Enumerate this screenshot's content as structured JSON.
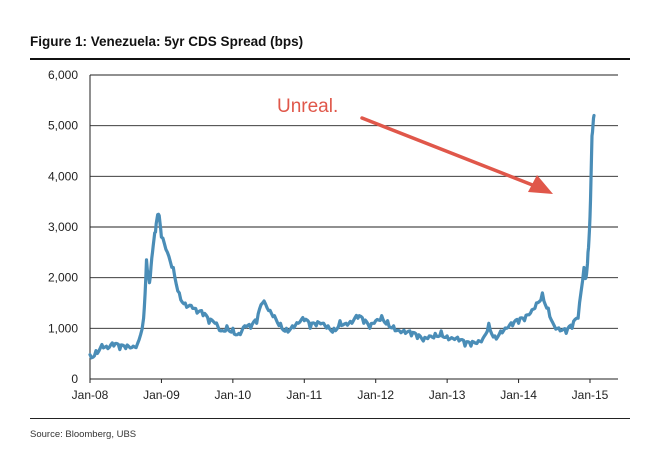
{
  "figure": {
    "title": "Figure 1: Venezuela: 5yr CDS Spread (bps)",
    "source": "Source:  Bloomberg, UBS"
  },
  "chart_data": {
    "type": "line",
    "title": "Figure 1: Venezuela: 5yr CDS Spread (bps)",
    "xlabel": "",
    "ylabel": "",
    "ylim": [
      0,
      6000
    ],
    "yticks": [
      0,
      1000,
      2000,
      3000,
      4000,
      5000,
      6000
    ],
    "ytick_labels": [
      "0",
      "1,000",
      "2,000",
      "3,000",
      "4,000",
      "5,000",
      "6,000"
    ],
    "xlim": [
      "2008-01",
      "2015-01"
    ],
    "xtick_labels": [
      "Jan-08",
      "Jan-09",
      "Jan-10",
      "Jan-11",
      "Jan-12",
      "Jan-13",
      "Jan-14",
      "Jan-15"
    ],
    "grid": "horizontal",
    "line_color": "#4a8db7",
    "annotation": {
      "text": "Unreal.",
      "color": "#e0574a"
    },
    "series": [
      {
        "x": [
          "2008-01",
          "2008-02",
          "2008-03",
          "2008-04",
          "2008-05",
          "2008-06",
          "2008-07",
          "2008-08",
          "2008-09",
          "2008-10",
          "2008-10",
          "2008-11",
          "2008-11",
          "2008-12",
          "2008-12",
          "2009-01",
          "2009-02",
          "2009-03",
          "2009-04",
          "2009-05",
          "2009-06",
          "2009-07",
          "2009-08",
          "2009-09",
          "2009-10",
          "2009-11",
          "2009-12",
          "2010-01",
          "2010-02",
          "2010-03",
          "2010-04",
          "2010-05",
          "2010-06",
          "2010-07",
          "2010-08",
          "2010-09",
          "2010-10",
          "2010-11",
          "2010-12",
          "2011-01",
          "2011-02",
          "2011-03",
          "2011-04",
          "2011-05",
          "2011-06",
          "2011-07",
          "2011-08",
          "2011-09",
          "2011-10",
          "2011-11",
          "2011-12",
          "2012-01",
          "2012-02",
          "2012-03",
          "2012-04",
          "2012-05",
          "2012-06",
          "2012-07",
          "2012-08",
          "2012-09",
          "2012-10",
          "2012-11",
          "2012-12",
          "2013-01",
          "2013-02",
          "2013-03",
          "2013-04",
          "2013-05",
          "2013-06",
          "2013-07",
          "2013-08",
          "2013-09",
          "2013-10",
          "2013-11",
          "2013-12",
          "2014-01",
          "2014-02",
          "2014-03",
          "2014-04",
          "2014-05",
          "2014-06",
          "2014-07",
          "2014-08",
          "2014-09",
          "2014-10",
          "2014-11",
          "2014-12",
          "2014-12",
          "2014-12",
          "2015-01",
          "2015-01",
          "2015-01"
        ],
        "values": [
          480,
          560,
          680,
          600,
          650,
          580,
          600,
          620,
          700,
          1200,
          2350,
          1900,
          2500,
          2900,
          3250,
          2800,
          2500,
          2200,
          1700,
          1500,
          1450,
          1300,
          1250,
          1100,
          1100,
          950,
          1050,
          1000,
          900,
          1050,
          1000,
          1100,
          1500,
          1350,
          1250,
          1100,
          1000,
          1050,
          1100,
          1150,
          1000,
          1050,
          1100,
          1050,
          1000,
          1150,
          1100,
          1100,
          1200,
          1100,
          1000,
          1150,
          1250,
          1150,
          1050,
          950,
          900,
          850,
          800,
          750,
          850,
          900,
          950,
          850,
          800,
          750,
          650,
          650,
          700,
          800,
          1100,
          850,
          950,
          1000,
          1050,
          1100,
          1150,
          1300,
          1500,
          1700,
          1400,
          1050,
          950,
          900,
          1000,
          1200,
          2200,
          2000,
          2500,
          3200,
          4800,
          5200
        ]
      }
    ]
  }
}
